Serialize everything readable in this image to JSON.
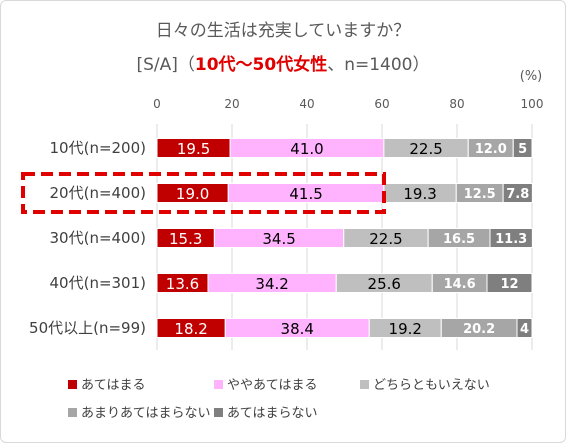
{
  "chart_data": {
    "type": "bar",
    "stacked": true,
    "orientation": "horizontal",
    "title": "日々の生活は充実していますか？",
    "subtitle_prefix": "[S/A]（",
    "subtitle_highlight": "10代～50代女性",
    "subtitle_suffix": "、n=1400）",
    "unit_label": "(%)",
    "xlim": [
      0,
      100
    ],
    "xticks": [
      "0",
      "20",
      "40",
      "60",
      "80",
      "100"
    ],
    "categories": [
      "10代(n=200)",
      "20代(n=400)",
      "30代(n=400)",
      "40代(n=301)",
      "50代以上(n=99)"
    ],
    "highlighted_category": "20代(n=400)",
    "series": [
      {
        "name": "あてはまる",
        "color": "#c00000",
        "values": [
          19.5,
          19.0,
          15.3,
          13.6,
          18.2
        ],
        "labels": [
          "19.5",
          "19.0",
          "15.3",
          "13.6",
          "18.2"
        ]
      },
      {
        "name": "ややあてはまる",
        "color": "#ffb3ff",
        "values": [
          41.0,
          41.5,
          34.5,
          34.2,
          38.4
        ],
        "labels": [
          "41.0",
          "41.5",
          "34.5",
          "34.2",
          "38.4"
        ]
      },
      {
        "name": "どちらともいえない",
        "color": "#bfbfbf",
        "values": [
          22.5,
          19.3,
          22.5,
          25.6,
          19.2
        ],
        "labels": [
          "22.5",
          "19.3",
          "22.5",
          "25.6",
          "19.2"
        ]
      },
      {
        "name": "あまりあてはまらない",
        "color": "#a6a6a6",
        "values": [
          12.0,
          12.5,
          16.5,
          14.6,
          20.2
        ],
        "labels": [
          "12.0",
          "12.5",
          "16.5",
          "14.6",
          "20.2"
        ]
      },
      {
        "name": "あてはまらない",
        "color": "#7f7f7f",
        "values": [
          5.0,
          7.8,
          11.3,
          12.0,
          4.0
        ],
        "labels": [
          "5",
          "7.8",
          "11.3",
          "12",
          "4"
        ]
      }
    ],
    "grid": true,
    "legend_position": "bottom"
  }
}
